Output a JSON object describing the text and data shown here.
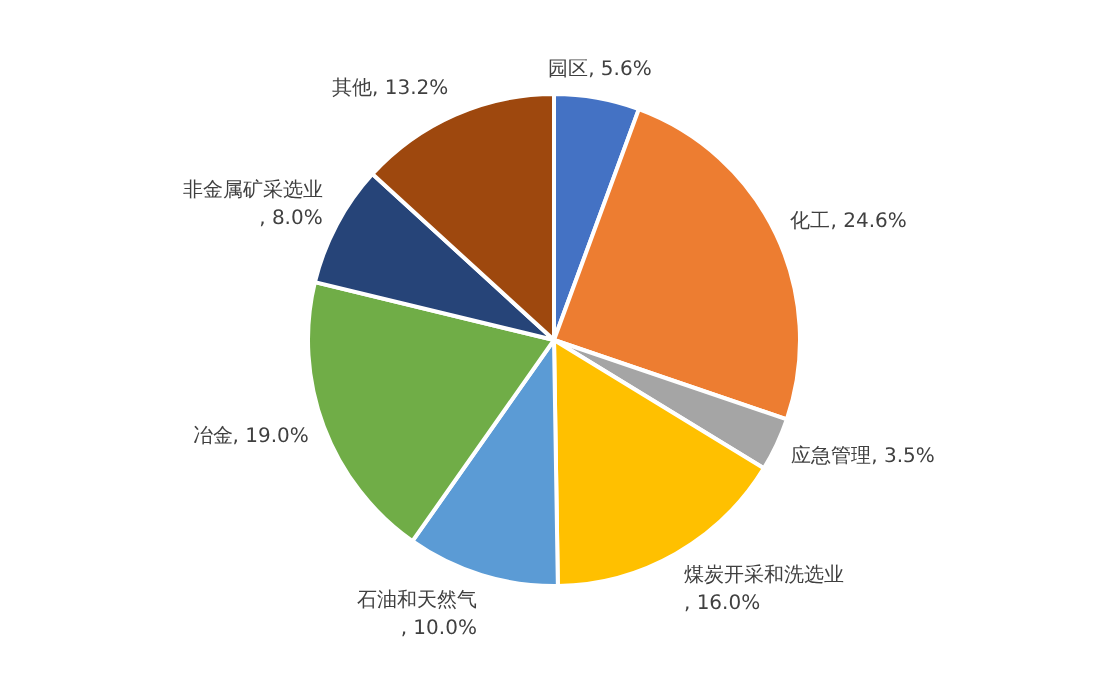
{
  "chart_data": {
    "type": "pie",
    "categories": [
      "园区",
      "化工",
      "应急管理",
      "煤炭开采和洗选业",
      "石油和天然气",
      "冶金",
      "非金属矿采选业",
      "其他"
    ],
    "values": [
      5.6,
      24.6,
      3.5,
      16.0,
      10.0,
      19.0,
      8.0,
      13.2
    ],
    "colors": [
      "#4472c4",
      "#ed7d31",
      "#a5a5a5",
      "#ffc000",
      "#5b9bd5",
      "#70ad47",
      "#264478",
      "#9e480e"
    ],
    "value_labels": [
      ", 5.6%",
      ", 24.6%",
      ", 3.5%",
      ", 16.0%",
      ", 10.0%",
      ", 19.0%",
      ", 8.0%",
      ", 13.2%"
    ],
    "legend": false
  }
}
